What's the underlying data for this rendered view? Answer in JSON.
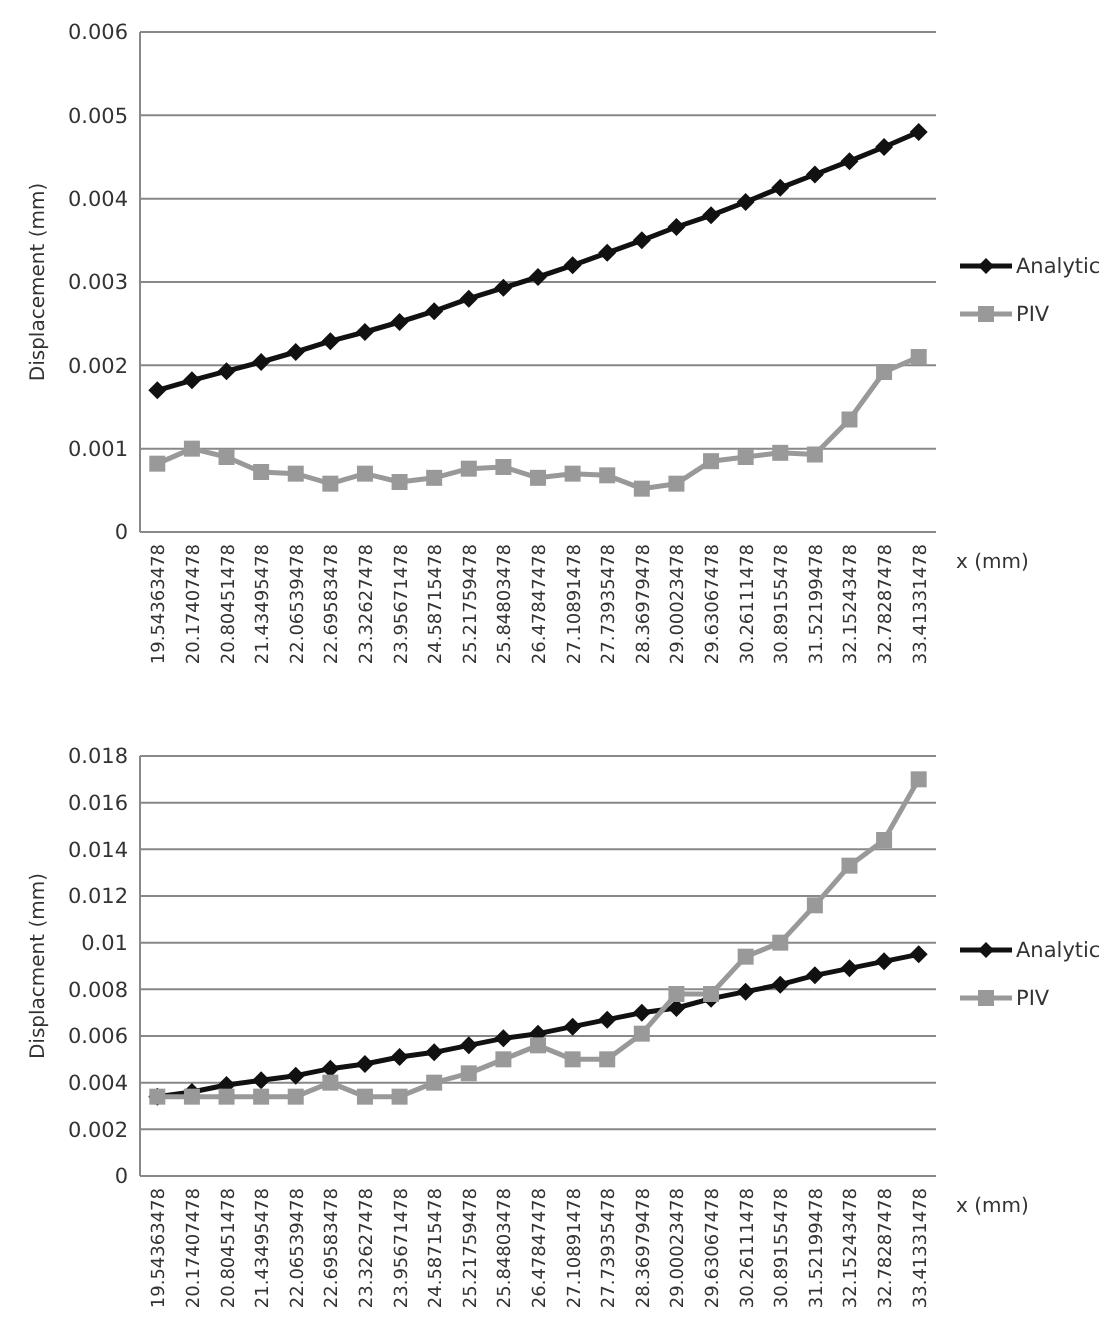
{
  "chart_data": [
    {
      "type": "line",
      "xlabel": "x (mm)",
      "ylabel": "Displacement (mm)",
      "categories": [
        "19.54363478",
        "20.17407478",
        "20.80451478",
        "21.43495478",
        "22.06539478",
        "22.69583478",
        "23.32627478",
        "23.95671478",
        "24.58715478",
        "25.21759478",
        "25.84803478",
        "26.47847478",
        "27.10891478",
        "27.73935478",
        "28.36979478",
        "29.00023478",
        "29.63067478",
        "30.26111478",
        "30.89155478",
        "31.52199478",
        "32.15243478",
        "32.78287478",
        "33.41331478"
      ],
      "series": [
        {
          "name": "Analytic",
          "color": "#111111",
          "marker": "diamond",
          "values": [
            0.0017,
            0.00182,
            0.00193,
            0.00204,
            0.00216,
            0.00229,
            0.0024,
            0.00252,
            0.00265,
            0.0028,
            0.00293,
            0.00306,
            0.0032,
            0.00335,
            0.0035,
            0.00366,
            0.0038,
            0.00396,
            0.00413,
            0.00429,
            0.00445,
            0.00462,
            0.0048
          ]
        },
        {
          "name": "PIV",
          "color": "#999999",
          "marker": "square",
          "values": [
            0.00082,
            0.001,
            0.0009,
            0.00072,
            0.0007,
            0.00058,
            0.0007,
            0.0006,
            0.00065,
            0.00076,
            0.00078,
            0.00065,
            0.0007,
            0.00068,
            0.00052,
            0.00058,
            0.00085,
            0.0009,
            0.00095,
            0.00093,
            0.00135,
            0.00192,
            0.0021
          ]
        }
      ],
      "ylim": [
        0,
        0.006
      ],
      "yticks": [
        0,
        0.001,
        0.002,
        0.003,
        0.004,
        0.005,
        0.006
      ],
      "grid": "y",
      "legend": "right"
    },
    {
      "type": "line",
      "xlabel": "x (mm)",
      "ylabel": "Displacment (mm)",
      "categories": [
        "19.54363478",
        "20.17407478",
        "20.80451478",
        "21.43495478",
        "22.06539478",
        "22.69583478",
        "23.32627478",
        "23.95671478",
        "24.58715478",
        "25.21759478",
        "25.84803478",
        "26.47847478",
        "27.10891478",
        "27.73935478",
        "28.36979478",
        "29.00023478",
        "29.63067478",
        "30.26111478",
        "30.89155478",
        "31.52199478",
        "32.15243478",
        "32.78287478",
        "33.41331478"
      ],
      "series": [
        {
          "name": "Analytic",
          "color": "#111111",
          "marker": "diamond",
          "values": [
            0.0034,
            0.0036,
            0.0039,
            0.0041,
            0.0043,
            0.0046,
            0.0048,
            0.0051,
            0.0053,
            0.0056,
            0.0059,
            0.0061,
            0.0064,
            0.0067,
            0.007,
            0.0072,
            0.0076,
            0.0079,
            0.0082,
            0.0086,
            0.0089,
            0.0092,
            0.0095
          ]
        },
        {
          "name": "PIV",
          "color": "#999999",
          "marker": "square",
          "values": [
            0.0034,
            0.0034,
            0.0034,
            0.0034,
            0.0034,
            0.004,
            0.0034,
            0.0034,
            0.004,
            0.0044,
            0.005,
            0.0056,
            0.005,
            0.005,
            0.0061,
            0.0078,
            0.0078,
            0.0094,
            0.01,
            0.0116,
            0.0133,
            0.0144,
            0.017
          ]
        }
      ],
      "ylim": [
        0,
        0.018
      ],
      "yticks": [
        0,
        0.002,
        0.004,
        0.006,
        0.008,
        0.01,
        0.012,
        0.014,
        0.016,
        0.018
      ],
      "grid": "y",
      "legend": "right"
    }
  ]
}
